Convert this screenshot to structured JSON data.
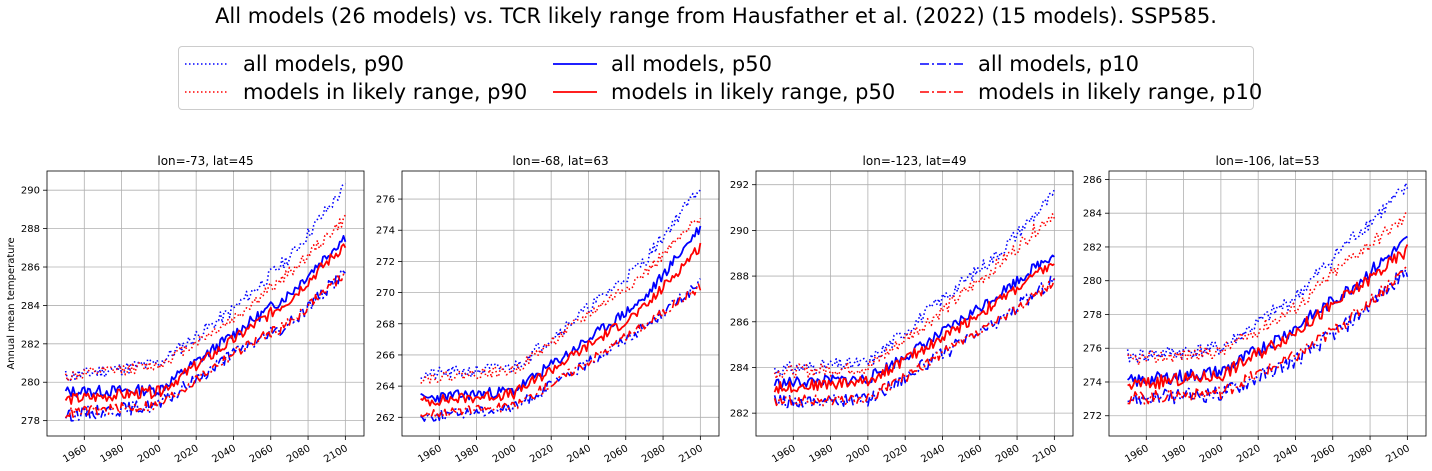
{
  "figure_title": "All models (26 models) vs.  TCR likely range from Hausfather et al. (2022) (15 models). SSP585.",
  "colors": {
    "all": "#0000ff",
    "likely": "#ff0000",
    "grid": "#b0b0b0"
  },
  "legend": [
    {
      "label": "all models, p90",
      "color": "#0000ff",
      "style": "dotted"
    },
    {
      "label": "models in likely range, p90",
      "color": "#ff0000",
      "style": "dotted"
    },
    {
      "label": "all models, p50",
      "color": "#0000ff",
      "style": "solid"
    },
    {
      "label": "models in likely range, p50",
      "color": "#ff0000",
      "style": "solid"
    },
    {
      "label": "all models, p10",
      "color": "#0000ff",
      "style": "dashdot"
    },
    {
      "label": "models in likely range, p10",
      "color": "#ff0000",
      "style": "dashdot"
    }
  ],
  "chart_data": [
    {
      "type": "line",
      "title": "lon=-73, lat=45",
      "ylabel": "Annual mean temperature",
      "xlim": [
        1940,
        2110
      ],
      "ylim": [
        277.2,
        291.0
      ],
      "xticks": [
        1960,
        1980,
        2000,
        2020,
        2040,
        2060,
        2080,
        2100
      ],
      "yticks": [
        278,
        280,
        282,
        284,
        286,
        288,
        290
      ],
      "x_range": [
        1950,
        2100
      ],
      "series": [
        {
          "name": "all models, p90",
          "anchors": [
            [
              1950,
              280.3
            ],
            [
              2000,
              281.0
            ],
            [
              2040,
              283.8
            ],
            [
              2070,
              286.5
            ],
            [
              2100,
              290.2
            ]
          ],
          "noise": 0.35,
          "seed": 11
        },
        {
          "name": "models in likely range, p90",
          "anchors": [
            [
              1950,
              280.3
            ],
            [
              2000,
              280.9
            ],
            [
              2040,
              283.3
            ],
            [
              2070,
              285.7
            ],
            [
              2100,
              288.5
            ]
          ],
          "noise": 0.3,
          "seed": 12
        },
        {
          "name": "all models, p50",
          "anchors": [
            [
              1950,
              279.5
            ],
            [
              2000,
              279.6
            ],
            [
              2040,
              282.5
            ],
            [
              2070,
              284.6
            ],
            [
              2100,
              287.6
            ]
          ],
          "noise": 0.3,
          "seed": 13
        },
        {
          "name": "models in likely range, p50",
          "anchors": [
            [
              1950,
              279.1
            ],
            [
              2000,
              279.5
            ],
            [
              2040,
              282.2
            ],
            [
              2070,
              284.3
            ],
            [
              2100,
              287.2
            ]
          ],
          "noise": 0.3,
          "seed": 14
        },
        {
          "name": "all models, p10",
          "anchors": [
            [
              1950,
              278.3
            ],
            [
              2000,
              278.8
            ],
            [
              2040,
              281.5
            ],
            [
              2070,
              283.0
            ],
            [
              2100,
              285.8
            ]
          ],
          "noise": 0.35,
          "seed": 15
        },
        {
          "name": "models in likely range, p10",
          "anchors": [
            [
              1950,
              278.4
            ],
            [
              2000,
              278.8
            ],
            [
              2040,
              281.5
            ],
            [
              2070,
              283.1
            ],
            [
              2100,
              285.7
            ]
          ],
          "noise": 0.3,
          "seed": 16
        }
      ]
    },
    {
      "type": "line",
      "title": "lon=-68, lat=63",
      "ylabel": "",
      "xlim": [
        1940,
        2110
      ],
      "ylim": [
        260.8,
        277.8
      ],
      "xticks": [
        1960,
        1980,
        2000,
        2020,
        2040,
        2060,
        2080,
        2100
      ],
      "yticks": [
        262,
        264,
        266,
        268,
        270,
        272,
        274,
        276
      ],
      "x_range": [
        1950,
        2100
      ],
      "series": [
        {
          "name": "all models, p90",
          "anchors": [
            [
              1950,
              264.7
            ],
            [
              2000,
              265.2
            ],
            [
              2040,
              269.0
            ],
            [
              2070,
              272.0
            ],
            [
              2100,
              276.8
            ]
          ],
          "noise": 0.4,
          "seed": 21
        },
        {
          "name": "models in likely range, p90",
          "anchors": [
            [
              1950,
              264.5
            ],
            [
              2000,
              265.0
            ],
            [
              2040,
              268.6
            ],
            [
              2070,
              271.2
            ],
            [
              2100,
              274.8
            ]
          ],
          "noise": 0.35,
          "seed": 22
        },
        {
          "name": "all models, p50",
          "anchors": [
            [
              1950,
              263.2
            ],
            [
              2000,
              263.7
            ],
            [
              2040,
              267.0
            ],
            [
              2070,
              269.6
            ],
            [
              2100,
              274.2
            ]
          ],
          "noise": 0.35,
          "seed": 23
        },
        {
          "name": "models in likely range, p50",
          "anchors": [
            [
              1950,
              263.0
            ],
            [
              2000,
              263.5
            ],
            [
              2040,
              266.6
            ],
            [
              2070,
              269.0
            ],
            [
              2100,
              273.0
            ]
          ],
          "noise": 0.35,
          "seed": 24
        },
        {
          "name": "all models, p10",
          "anchors": [
            [
              1950,
              262.0
            ],
            [
              2000,
              262.6
            ],
            [
              2040,
              265.5
            ],
            [
              2070,
              267.8
            ],
            [
              2100,
              270.6
            ]
          ],
          "noise": 0.35,
          "seed": 25
        },
        {
          "name": "models in likely range, p10",
          "anchors": [
            [
              1950,
              262.2
            ],
            [
              2000,
              262.7
            ],
            [
              2040,
              265.6
            ],
            [
              2070,
              267.9
            ],
            [
              2100,
              270.4
            ]
          ],
          "noise": 0.3,
          "seed": 26
        }
      ]
    },
    {
      "type": "line",
      "title": "lon=-123, lat=49",
      "ylabel": "",
      "xlim": [
        1940,
        2110
      ],
      "ylim": [
        281.0,
        292.6
      ],
      "xticks": [
        1960,
        1980,
        2000,
        2020,
        2040,
        2060,
        2080,
        2100
      ],
      "yticks": [
        282,
        284,
        286,
        288,
        290,
        292
      ],
      "x_range": [
        1950,
        2100
      ],
      "series": [
        {
          "name": "all models, p90",
          "anchors": [
            [
              1950,
              283.9
            ],
            [
              2000,
              284.2
            ],
            [
              2040,
              287.0
            ],
            [
              2070,
              289.0
            ],
            [
              2100,
              291.6
            ]
          ],
          "noise": 0.3,
          "seed": 31
        },
        {
          "name": "models in likely range, p90",
          "anchors": [
            [
              1950,
              283.8
            ],
            [
              2000,
              284.0
            ],
            [
              2040,
              286.5
            ],
            [
              2070,
              288.5
            ],
            [
              2100,
              290.8
            ]
          ],
          "noise": 0.3,
          "seed": 32
        },
        {
          "name": "all models, p50",
          "anchors": [
            [
              1950,
              283.3
            ],
            [
              2000,
              283.5
            ],
            [
              2040,
              285.5
            ],
            [
              2070,
              287.2
            ],
            [
              2100,
              289.0
            ]
          ],
          "noise": 0.25,
          "seed": 33
        },
        {
          "name": "models in likely range, p50",
          "anchors": [
            [
              1950,
              283.1
            ],
            [
              2000,
              283.4
            ],
            [
              2040,
              285.3
            ],
            [
              2070,
              286.9
            ],
            [
              2100,
              288.6
            ]
          ],
          "noise": 0.25,
          "seed": 34
        },
        {
          "name": "all models, p10",
          "anchors": [
            [
              1950,
              282.5
            ],
            [
              2000,
              282.6
            ],
            [
              2040,
              284.6
            ],
            [
              2070,
              286.0
            ],
            [
              2100,
              287.9
            ]
          ],
          "noise": 0.3,
          "seed": 35
        },
        {
          "name": "models in likely range, p10",
          "anchors": [
            [
              1950,
              282.5
            ],
            [
              2000,
              282.6
            ],
            [
              2040,
              284.6
            ],
            [
              2070,
              286.0
            ],
            [
              2100,
              287.8
            ]
          ],
          "noise": 0.25,
          "seed": 36
        }
      ]
    },
    {
      "type": "line",
      "title": "lon=-106, lat=53",
      "ylabel": "",
      "xlim": [
        1940,
        2110
      ],
      "ylim": [
        270.8,
        286.5
      ],
      "xticks": [
        1960,
        1980,
        2000,
        2020,
        2040,
        2060,
        2080,
        2100
      ],
      "yticks": [
        272,
        274,
        276,
        278,
        280,
        282,
        284,
        286
      ],
      "x_range": [
        1950,
        2100
      ],
      "series": [
        {
          "name": "all models, p90",
          "anchors": [
            [
              1950,
              275.5
            ],
            [
              2000,
              276.0
            ],
            [
              2040,
              279.0
            ],
            [
              2070,
              282.5
            ],
            [
              2100,
              285.5
            ]
          ],
          "noise": 0.45,
          "seed": 41
        },
        {
          "name": "models in likely range, p90",
          "anchors": [
            [
              1950,
              275.3
            ],
            [
              2000,
              275.8
            ],
            [
              2040,
              278.4
            ],
            [
              2070,
              281.4
            ],
            [
              2100,
              283.8
            ]
          ],
          "noise": 0.4,
          "seed": 42
        },
        {
          "name": "all models, p50",
          "anchors": [
            [
              1950,
              274.0
            ],
            [
              2000,
              274.6
            ],
            [
              2040,
              277.2
            ],
            [
              2070,
              279.6
            ],
            [
              2100,
              282.4
            ]
          ],
          "noise": 0.4,
          "seed": 43
        },
        {
          "name": "models in likely range, p50",
          "anchors": [
            [
              1950,
              273.8
            ],
            [
              2000,
              274.4
            ],
            [
              2040,
              277.0
            ],
            [
              2070,
              279.3
            ],
            [
              2100,
              281.8
            ]
          ],
          "noise": 0.4,
          "seed": 44
        },
        {
          "name": "all models, p10",
          "anchors": [
            [
              1950,
              273.0
            ],
            [
              2000,
              273.3
            ],
            [
              2040,
              275.3
            ],
            [
              2070,
              277.6
            ],
            [
              2100,
              280.6
            ]
          ],
          "noise": 0.45,
          "seed": 45
        },
        {
          "name": "models in likely range, p10",
          "anchors": [
            [
              1950,
              273.0
            ],
            [
              2000,
              273.4
            ],
            [
              2040,
              275.5
            ],
            [
              2070,
              277.8
            ],
            [
              2100,
              280.8
            ]
          ],
          "noise": 0.4,
          "seed": 46
        }
      ]
    }
  ]
}
